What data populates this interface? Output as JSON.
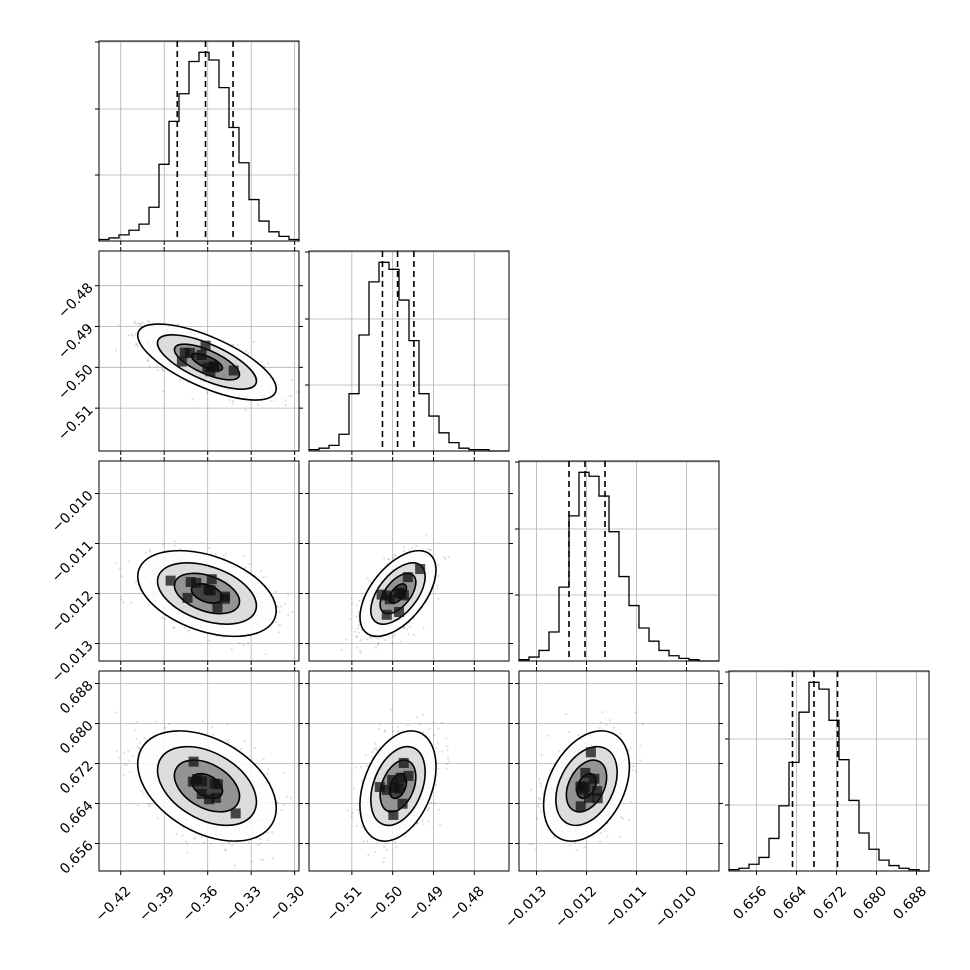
{
  "chart_data": {
    "type": "corner",
    "parameter_count": 4,
    "axes": [
      {
        "range": [
          -0.435,
          -0.297
        ],
        "ticks": [
          -0.42,
          -0.39,
          -0.36,
          -0.33,
          -0.3
        ],
        "tick_labels": [
          "−0.42",
          "−0.39",
          "−0.36",
          "−0.33",
          "−0.30"
        ],
        "quantiles": [
          -0.381,
          -0.3615,
          -0.3425
        ],
        "mean": -0.3605,
        "sd": 0.0195
      },
      {
        "range": [
          -0.5205,
          -0.4715
        ],
        "ticks": [
          -0.48,
          -0.49,
          -0.5,
          -0.51
        ],
        "tick_labels": [
          "−0.48",
          "−0.49",
          "−0.50",
          "−0.51"
        ],
        "tick_labels_x": [
          "−0.51",
          "−0.50",
          "−0.49",
          "−0.48"
        ],
        "quantiles": [
          -0.5025,
          -0.4988,
          -0.4948
        ],
        "mean": -0.4987,
        "sd": 0.0038
      },
      {
        "range": [
          -0.01335,
          -0.00935
        ],
        "ticks": [
          -0.01,
          -0.011,
          -0.012,
          -0.013
        ],
        "tick_labels": [
          "−0.010",
          "−0.011",
          "−0.012",
          "−0.013"
        ],
        "tick_labels_x": [
          "−0.013",
          "−0.012",
          "−0.011",
          "−0.010"
        ],
        "quantiles": [
          -0.01235,
          -0.01203,
          -0.01163
        ],
        "mean": -0.012,
        "sd": 0.00035
      },
      {
        "range": [
          0.6505,
          0.6905
        ],
        "ticks": [
          0.688,
          0.68,
          0.672,
          0.664,
          0.656
        ],
        "tick_labels": [
          "0.688",
          "0.680",
          "0.672",
          "0.664",
          "0.656"
        ],
        "tick_labels_x": [
          "0.656",
          "0.664",
          "0.672",
          "0.680",
          "0.688"
        ],
        "quantiles": [
          0.6632,
          0.6675,
          0.6722
        ],
        "mean": 0.6675,
        "sd": 0.0045
      }
    ],
    "hist_counts": [
      [
        1,
        2,
        4,
        7,
        11,
        22,
        50,
        78,
        96,
        117,
        123,
        118,
        100,
        74,
        51,
        27,
        13,
        6,
        3,
        1
      ],
      [
        1,
        2,
        4,
        12,
        41,
        83,
        121,
        135,
        130,
        108,
        79,
        41,
        25,
        13,
        6,
        2,
        1,
        1,
        0,
        0
      ],
      [
        1,
        3,
        8,
        22,
        56,
        110,
        143,
        140,
        125,
        98,
        64,
        42,
        25,
        15,
        8,
        4,
        2,
        1,
        0,
        0
      ],
      [
        1,
        2,
        5,
        10,
        24,
        48,
        80,
        117,
        139,
        134,
        111,
        82,
        52,
        28,
        16,
        8,
        4,
        2,
        1,
        0
      ]
    ],
    "correlations": {
      "1-0": -0.7,
      "2-0": -0.4,
      "2-1": 0.55,
      "3-0": -0.4,
      "3-1": 0.35,
      "3-2": 0.35
    },
    "grid": true,
    "contour_levels": 4,
    "quantile_lines": "dashed"
  }
}
